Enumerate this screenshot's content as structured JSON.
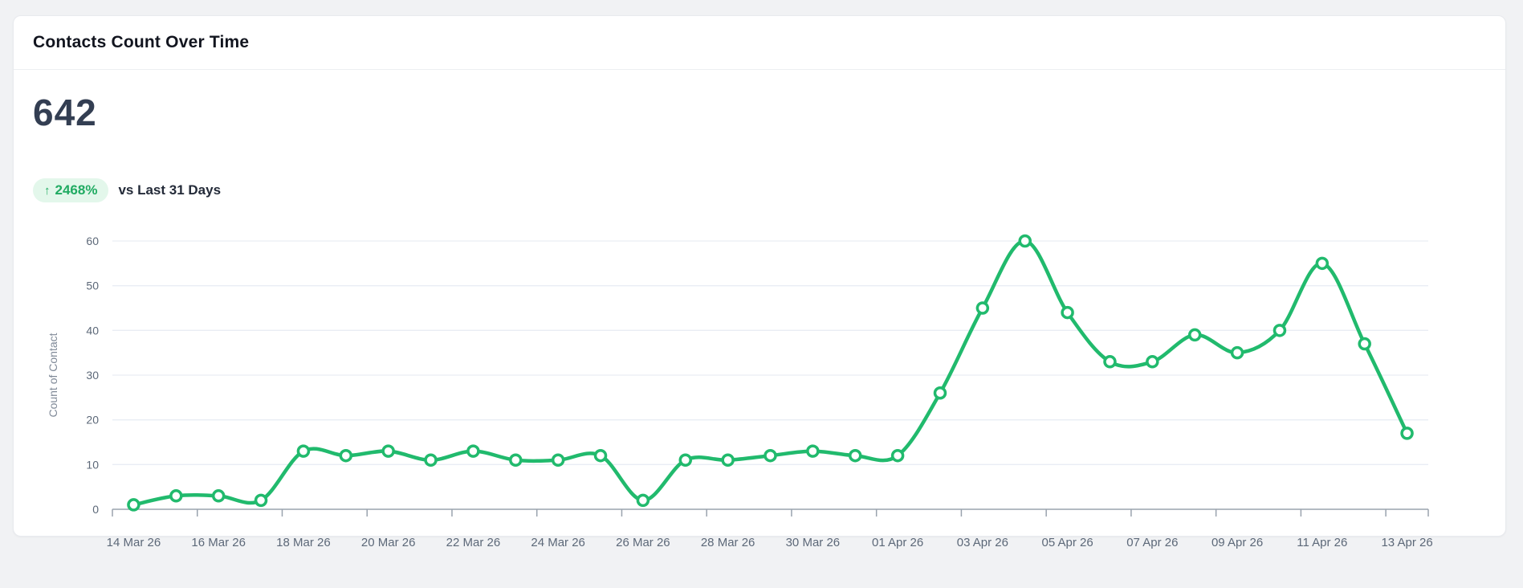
{
  "card": {
    "title": "Contacts Count Over Time",
    "metric": {
      "value": "642",
      "change_arrow": "↑",
      "change_percent": "2468%",
      "comparison_label": "vs Last 31 Days"
    }
  },
  "colors": {
    "accent_green": "#21ba6d",
    "badge_bg": "#e3f7eb",
    "badge_text": "#20ab62",
    "grid_line": "#e9edf4",
    "axis_line": "#9aa3ae",
    "tick_text": "#5c6878",
    "axis_title_text": "#7f8997",
    "page_bg": "#f1f2f4",
    "card_bg": "#ffffff"
  },
  "chart_data": {
    "type": "line",
    "title": "Contacts Count Over Time",
    "xlabel": "",
    "ylabel": "Count of Contact",
    "x": [
      "14 Mar 26",
      "15 Mar 26",
      "16 Mar 26",
      "17 Mar 26",
      "18 Mar 26",
      "19 Mar 26",
      "20 Mar 26",
      "21 Mar 26",
      "22 Mar 26",
      "23 Mar 26",
      "24 Mar 26",
      "25 Mar 26",
      "26 Mar 26",
      "27 Mar 26",
      "28 Mar 26",
      "29 Mar 26",
      "30 Mar 26",
      "31 Mar 26",
      "01 Apr 26",
      "02 Apr 26",
      "03 Apr 26",
      "04 Apr 26",
      "05 Apr 26",
      "06 Apr 26",
      "07 Apr 26",
      "08 Apr 26",
      "09 Apr 26",
      "10 Apr 26",
      "11 Apr 26",
      "12 Apr 26",
      "13 Apr 26"
    ],
    "values": [
      1,
      3,
      3,
      2,
      13,
      12,
      13,
      11,
      13,
      11,
      11,
      12,
      2,
      11,
      11,
      12,
      13,
      12,
      12,
      26,
      45,
      60,
      44,
      33,
      33,
      39,
      35,
      40,
      55,
      37,
      17
    ],
    "total": 642,
    "ylim": [
      0,
      60
    ],
    "y_ticks": [
      0,
      10,
      20,
      30,
      40,
      50,
      60
    ],
    "x_label_every": 2,
    "grid": "horizontal",
    "legend": "none",
    "marker": "open-circle",
    "smooth": true
  }
}
